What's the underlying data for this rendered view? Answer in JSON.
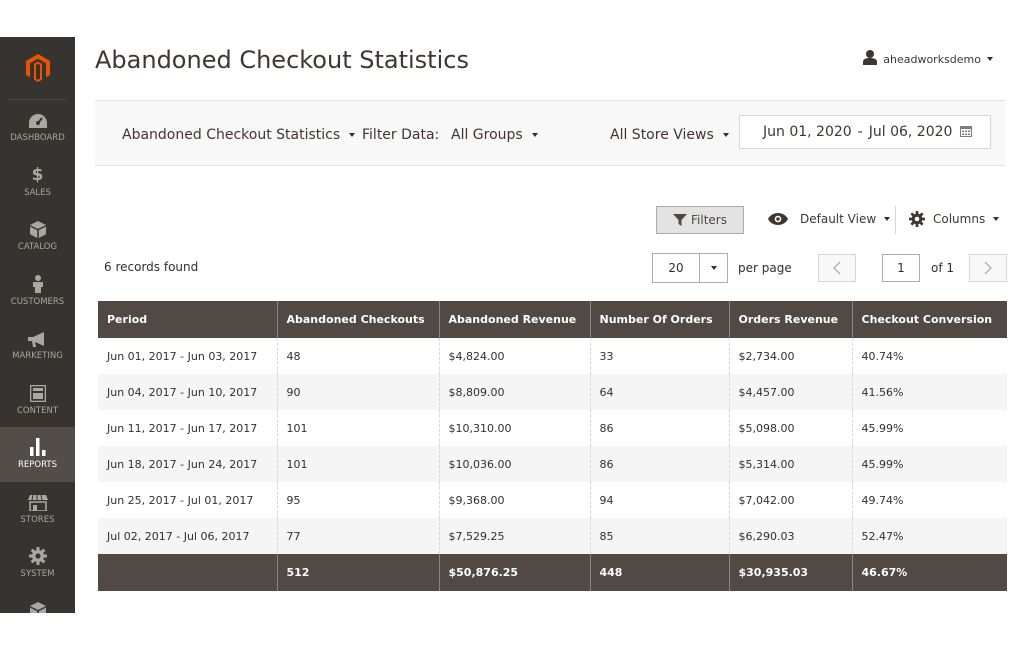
{
  "title": "Abandoned Checkout Statistics",
  "user": {
    "name": "aheadworksdemo"
  },
  "sidebar": {
    "items": [
      {
        "label": "DASHBOARD",
        "icon": "dashboard-icon"
      },
      {
        "label": "SALES",
        "icon": "dollar-icon"
      },
      {
        "label": "CATALOG",
        "icon": "box-icon"
      },
      {
        "label": "CUSTOMERS",
        "icon": "person-icon"
      },
      {
        "label": "MARKETING",
        "icon": "megaphone-icon"
      },
      {
        "label": "CONTENT",
        "icon": "layout-icon"
      },
      {
        "label": "REPORTS",
        "icon": "bar-chart-icon",
        "active": true
      },
      {
        "label": "STORES",
        "icon": "store-icon"
      },
      {
        "label": "SYSTEM",
        "icon": "gear-icon"
      }
    ]
  },
  "filter_bar": {
    "report_select": "Abandoned Checkout Statistics",
    "filter_label": "Filter Data:",
    "group_select": "All Groups",
    "store_select": "All Store Views",
    "date_from": "Jun 01, 2020",
    "date_sep": "-",
    "date_to": "Jul 06, 2020"
  },
  "toolbar": {
    "filters_label": "Filters",
    "view_label": "Default View",
    "columns_label": "Columns",
    "records_found": "6 records found",
    "per_page_value": "20",
    "per_page_label": "per page",
    "page_value": "1",
    "page_of": "of 1"
  },
  "table": {
    "columns": [
      "Period",
      "Abandoned Checkouts",
      "Abandoned Revenue",
      "Number Of Orders",
      "Orders Revenue",
      "Checkout Conversion"
    ],
    "rows": [
      [
        "Jun 01, 2017 - Jun 03, 2017",
        "48",
        "$4,824.00",
        "33",
        "$2,734.00",
        "40.74%"
      ],
      [
        "Jun 04, 2017 - Jun 10, 2017",
        "90",
        "$8,809.00",
        "64",
        "$4,457.00",
        "41.56%"
      ],
      [
        "Jun 11, 2017 - Jun 17, 2017",
        "101",
        "$10,310.00",
        "86",
        "$5,098.00",
        "45.99%"
      ],
      [
        "Jun 18, 2017 - Jun 24, 2017",
        "101",
        "$10,036.00",
        "86",
        "$5,314.00",
        "45.99%"
      ],
      [
        "Jun 25, 2017 - Jul 01, 2017",
        "95",
        "$9,368.00",
        "94",
        "$7,042.00",
        "49.74%"
      ],
      [
        "Jul 02, 2017 - Jul 06, 2017",
        "77",
        "$7,529.25",
        "85",
        "$6,290.03",
        "52.47%"
      ]
    ],
    "totals": [
      "",
      "512",
      "$50,876.25",
      "448",
      "$30,935.03",
      "46.67%"
    ]
  },
  "colors": {
    "sidebar_bg": "#373330",
    "table_header_bg": "#514943",
    "brand_orange": "#eb5202"
  }
}
